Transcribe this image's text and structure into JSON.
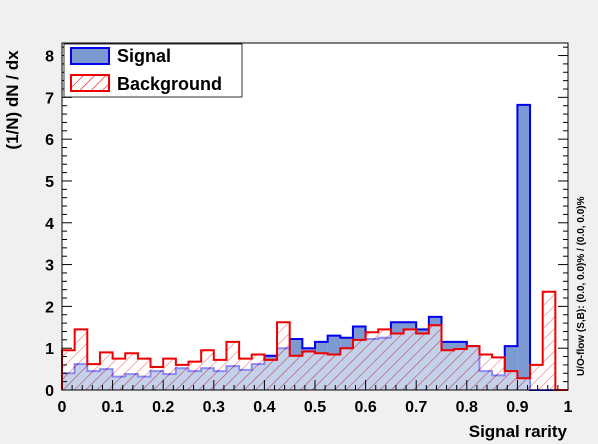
{
  "chart_data": {
    "type": "histogram",
    "xlabel": "Signal rarity",
    "ylabel": "(1/N) dN / dx",
    "side_note": "U/O-flow (S,B): (0.0, 0.0)% / (0.0, 0.0)%",
    "xlim": [
      0,
      1
    ],
    "ylim": [
      0,
      8.3
    ],
    "x_ticks": [
      "0",
      "0.1",
      "0.2",
      "0.3",
      "0.4",
      "0.5",
      "0.6",
      "0.7",
      "0.8",
      "0.9",
      "1"
    ],
    "y_ticks": [
      "0",
      "1",
      "2",
      "3",
      "4",
      "5",
      "6",
      "7",
      "8"
    ],
    "bin_width": 0.025,
    "grid": false,
    "legend_position": "top-left",
    "series": [
      {
        "name": "Signal",
        "style": "filled",
        "fill_color": "#7d99d1",
        "line_color": "#0000ee",
        "values": [
          0.4,
          0.62,
          0.45,
          0.5,
          0.32,
          0.38,
          0.32,
          0.45,
          0.38,
          0.52,
          0.45,
          0.52,
          0.45,
          0.57,
          0.48,
          0.62,
          0.82,
          1.0,
          1.22,
          1.0,
          1.15,
          1.3,
          1.25,
          1.52,
          1.22,
          1.25,
          1.62,
          1.62,
          1.45,
          1.75,
          1.15,
          1.15,
          1.05,
          0.45,
          0.35,
          1.05,
          6.82,
          0.0,
          0.0,
          0.0
        ]
      },
      {
        "name": "Background",
        "style": "hatched",
        "fill_color": "#ff0000",
        "line_color": "#ee0000",
        "values": [
          0.95,
          1.45,
          0.62,
          0.9,
          0.75,
          0.88,
          0.75,
          0.55,
          0.75,
          0.6,
          0.68,
          0.95,
          0.72,
          1.15,
          0.75,
          0.85,
          0.72,
          1.62,
          0.82,
          0.92,
          0.88,
          0.85,
          1.0,
          1.2,
          1.38,
          1.45,
          1.35,
          1.45,
          1.35,
          1.55,
          0.95,
          0.98,
          1.05,
          0.85,
          0.78,
          0.45,
          0.28,
          0.6,
          2.35,
          0.0
        ]
      }
    ]
  }
}
